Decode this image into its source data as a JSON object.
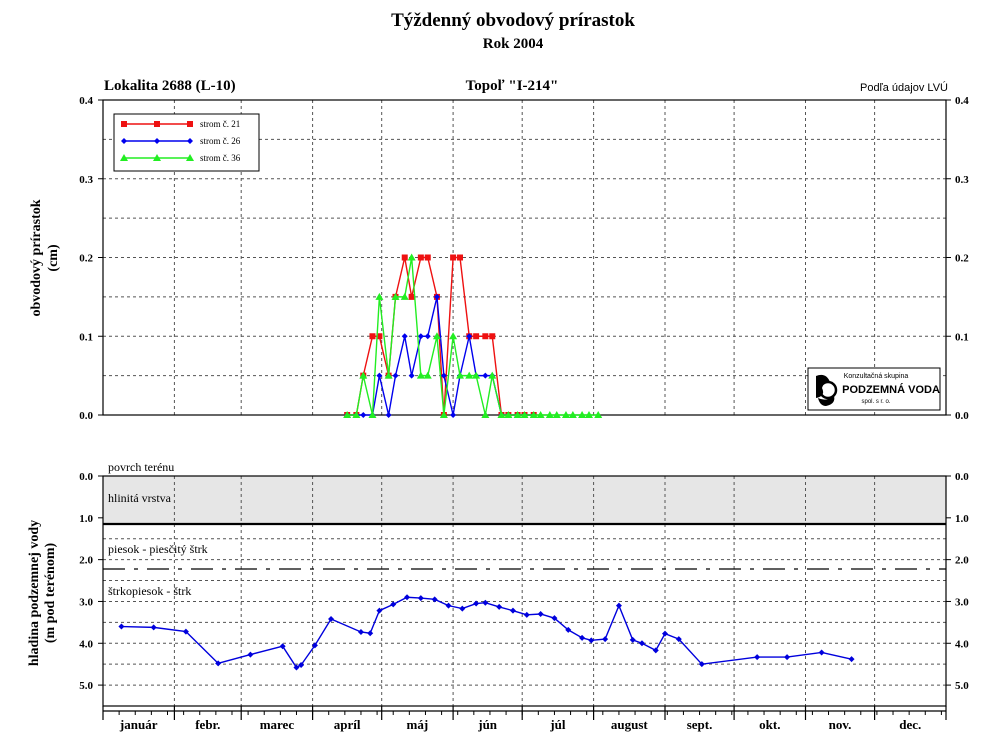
{
  "title": "Týždenný obvodový prírastok",
  "subtitle": "Rok 2004",
  "location": "Lokalita 2688 (L-10)",
  "tree": "Topoľ \"I-214\"",
  "source": "Podľa údajov LVÚ",
  "logo": {
    "line1": "Konzultačná skupina",
    "line2": "PODZEMNÁ VODA",
    "line3": "spol. s r. o."
  },
  "months": [
    "január",
    "febr.",
    "marec",
    "apríl",
    "máj",
    "jún",
    "júl",
    "august",
    "sept.",
    "okt.",
    "nov.",
    "dec."
  ],
  "chart_data": [
    {
      "type": "line",
      "ylabel_line1": "obvodový prírastok",
      "ylabel_line2": "(cm)",
      "ylim": [
        0,
        0.4
      ],
      "yticks": [
        "0.0",
        "0.1",
        "0.2",
        "0.3",
        "0.4"
      ],
      "grid": true,
      "legend_position": "top-left",
      "series": [
        {
          "name": "strom č. 21",
          "color": "#ee1111",
          "marker": "square",
          "x": [
            106,
            110,
            113,
            117,
            120,
            124,
            127,
            131,
            134,
            138,
            141,
            145,
            148,
            152,
            155,
            159,
            162,
            166,
            169,
            173,
            176,
            180,
            183,
            187
          ],
          "y": [
            0.0,
            0.0,
            0.05,
            0.1,
            0.1,
            0.05,
            0.15,
            0.2,
            0.15,
            0.2,
            0.2,
            0.15,
            0.0,
            0.2,
            0.2,
            0.1,
            0.1,
            0.1,
            0.1,
            0.0,
            0.0,
            0.0,
            0.0,
            0.0
          ]
        },
        {
          "name": "strom č. 26",
          "color": "#0000ee",
          "marker": "diamond",
          "x": [
            106,
            110,
            113,
            117,
            120,
            124,
            127,
            131,
            134,
            138,
            141,
            145,
            148,
            152,
            155,
            159,
            162,
            166,
            169,
            173,
            176,
            180,
            183,
            187
          ],
          "y": [
            0.0,
            0.0,
            0.0,
            0.0,
            0.05,
            0.0,
            0.05,
            0.1,
            0.05,
            0.1,
            0.1,
            0.15,
            0.05,
            0.0,
            0.05,
            0.1,
            0.05,
            0.05,
            0.05,
            0.0,
            0.0,
            0.0,
            0.0,
            0.0
          ]
        },
        {
          "name": "strom č. 36",
          "color": "#22ee22",
          "marker": "triangle",
          "x": [
            106,
            110,
            113,
            117,
            120,
            124,
            127,
            131,
            134,
            138,
            141,
            145,
            148,
            152,
            155,
            159,
            162,
            166,
            169,
            173,
            176,
            180,
            183,
            187,
            190,
            194,
            197,
            201,
            204,
            208,
            211,
            215
          ],
          "y": [
            0.0,
            0.0,
            0.05,
            0.0,
            0.15,
            0.05,
            0.15,
            0.15,
            0.2,
            0.05,
            0.05,
            0.1,
            0.0,
            0.1,
            0.05,
            0.05,
            0.05,
            0.0,
            0.05,
            0.0,
            0.0,
            0.0,
            0.0,
            0.0,
            0.0,
            0.0,
            0.0,
            0.0,
            0.0,
            0.0,
            0.0,
            0.0
          ]
        }
      ]
    },
    {
      "type": "line",
      "ylabel_line1": "hladina podzemnej vody",
      "ylabel_line2": "(m pod terénom)",
      "ylim": [
        0,
        5.5
      ],
      "inverted": true,
      "yticks": [
        "0.0",
        "1.0",
        "2.0",
        "3.0",
        "4.0",
        "5.0"
      ],
      "grid": true,
      "layers": [
        {
          "label": "povrch terénu",
          "depth": 0.0
        },
        {
          "label": "hlinitá vrstva",
          "from": 0.0,
          "to": 1.15
        },
        {
          "label": "piesok - piesčitý štrk",
          "boundary": 2.25
        },
        {
          "label": "štrkopiesok - štrk"
        }
      ],
      "series": [
        {
          "name": "",
          "color": "#0000dd",
          "marker": "diamond",
          "x": [
            8,
            22,
            36,
            50,
            64,
            78,
            84,
            86,
            92,
            99,
            112,
            116,
            120,
            126,
            132,
            138,
            144,
            150,
            156,
            162,
            166,
            172,
            178,
            184,
            190,
            196,
            202,
            208,
            212,
            218,
            224,
            230,
            234,
            240,
            244,
            250,
            260,
            284,
            297,
            312,
            325
          ],
          "y": [
            3.6,
            3.62,
            3.72,
            4.48,
            4.27,
            4.07,
            4.58,
            4.52,
            4.05,
            3.42,
            3.73,
            3.76,
            3.22,
            3.07,
            2.9,
            2.92,
            2.95,
            3.1,
            3.17,
            3.05,
            3.03,
            3.13,
            3.22,
            3.32,
            3.3,
            3.4,
            3.68,
            3.87,
            3.93,
            3.9,
            3.1,
            3.92,
            4.0,
            4.17,
            3.77,
            3.9,
            4.5,
            4.33,
            4.33,
            4.22,
            4.38
          ]
        }
      ]
    }
  ]
}
